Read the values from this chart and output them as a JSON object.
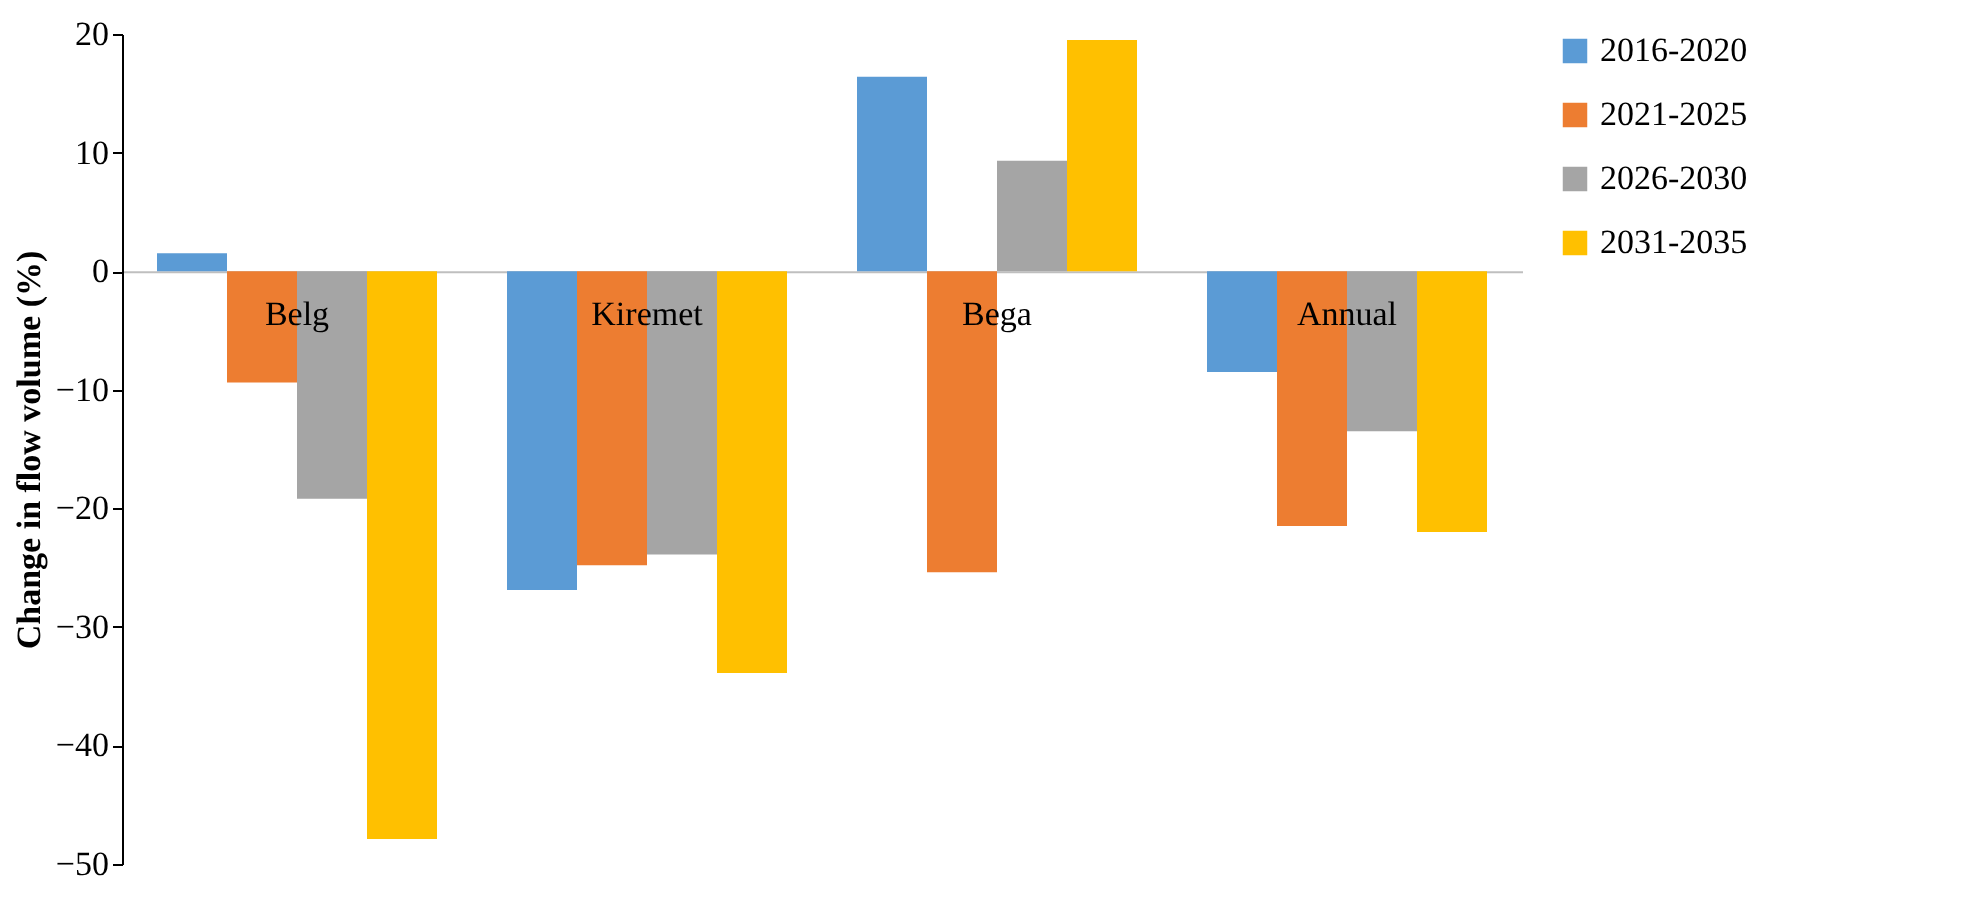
{
  "chart_data": {
    "type": "bar",
    "ylabel": "Change in flow volume (%)",
    "categories": [
      "Belg",
      "Kiremet",
      "Bega",
      "Annual"
    ],
    "series": [
      {
        "name": "2016-2020",
        "color": "#5b9bd5",
        "values": [
          1.5,
          -26.9,
          16.4,
          -8.5
        ]
      },
      {
        "name": "2021-2025",
        "color": "#ed7d31",
        "values": [
          -9.4,
          -24.8,
          -25.4,
          -21.5
        ]
      },
      {
        "name": "2026-2030",
        "color": "#a5a5a5",
        "values": [
          -19.2,
          -23.9,
          9.3,
          -13.5
        ]
      },
      {
        "name": "2031-2035",
        "color": "#ffc000",
        "values": [
          -47.9,
          -33.9,
          19.5,
          -22.0
        ]
      }
    ],
    "ylim": [
      -50,
      20
    ],
    "yticks": [
      -50,
      -40,
      -30,
      -20,
      -10,
      0,
      10,
      20
    ],
    "grid": false,
    "legend": "right"
  }
}
